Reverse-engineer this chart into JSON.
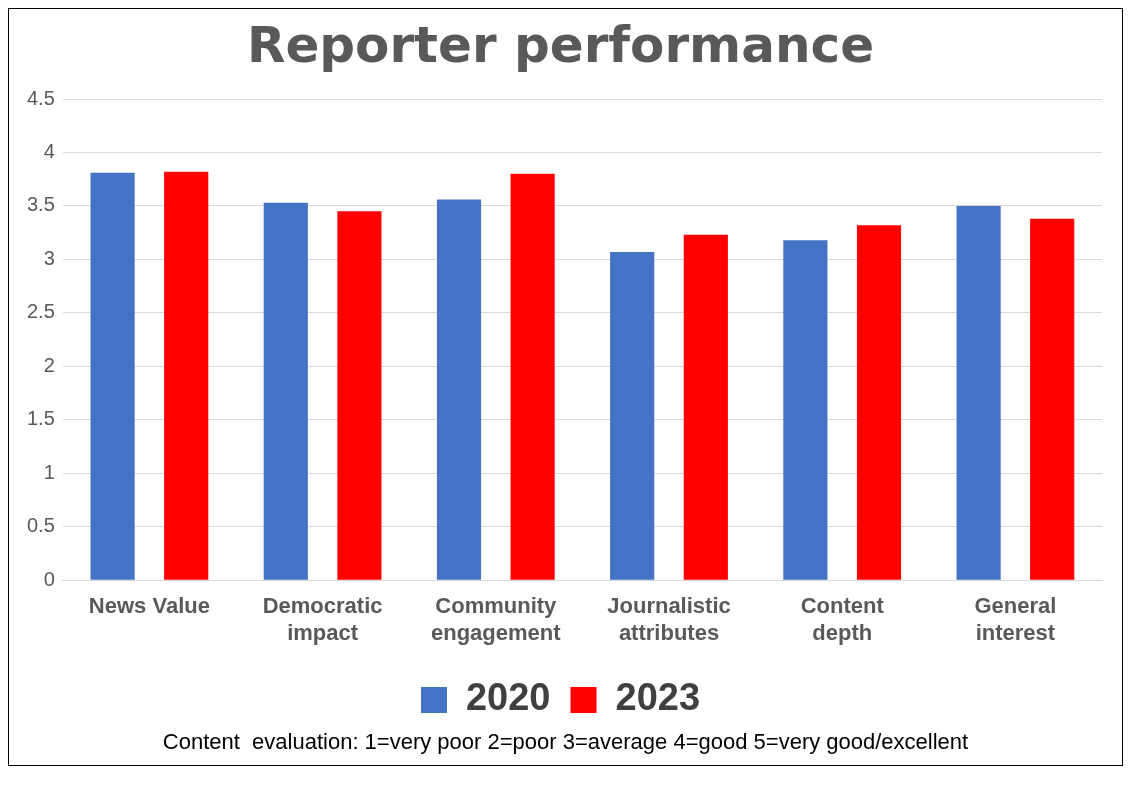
{
  "chart_data": {
    "type": "bar",
    "title": "Reporter performance",
    "categories": [
      "News Value",
      "Democratic impact",
      "Community engagement",
      "Journalistic attributes",
      "Content depth",
      "General interest"
    ],
    "series": [
      {
        "name": "2020",
        "color": "#4472c4",
        "values": [
          3.81,
          3.53,
          3.56,
          3.07,
          3.18,
          3.5
        ]
      },
      {
        "name": "2023",
        "color": "#ff0000",
        "values": [
          3.82,
          3.45,
          3.8,
          3.23,
          3.32,
          3.38
        ]
      }
    ],
    "ylim": [
      0,
      4.5
    ],
    "yticks": [
      0,
      0.5,
      1,
      1.5,
      2,
      2.5,
      3,
      3.5,
      4,
      4.5
    ],
    "grid": "y",
    "legend": "bottom",
    "annotations": [
      "Content  evaluation: 1=very poor 2=poor 3=average 4=good 5=very good/excellent"
    ]
  }
}
